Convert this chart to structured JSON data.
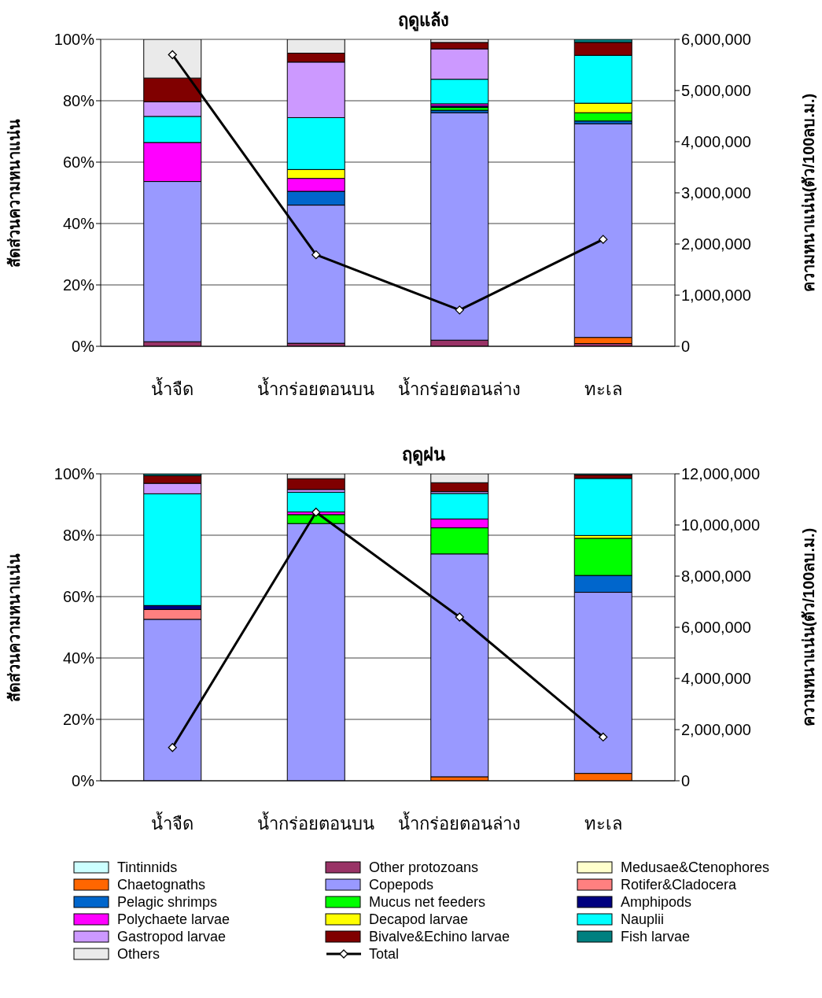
{
  "chart_data": [
    {
      "type": "bar",
      "stacked": true,
      "title": "ฤดูแล้ง",
      "ylabel": "สัดส่วนความหนาแน่น",
      "y2label": "ความหนาแน่น(ตัว/100ลบ.ม.)",
      "categories": [
        "น้ำจืด",
        "น้ำกร่อยตอนบน",
        "น้ำกร่อยตอนล่าง",
        "ทะเล"
      ],
      "ylim": [
        0,
        100
      ],
      "yticks": [
        {
          "value": 0,
          "label": "0%"
        },
        {
          "value": 20,
          "label": "20%"
        },
        {
          "value": 40,
          "label": "40%"
        },
        {
          "value": 60,
          "label": "60%"
        },
        {
          "value": 80,
          "label": "80%"
        },
        {
          "value": 100,
          "label": "100%"
        }
      ],
      "y2lim": [
        0,
        6000000
      ],
      "y2ticks": [
        {
          "value": 0,
          "label": "0"
        },
        {
          "value": 1000000,
          "label": "1,000,000"
        },
        {
          "value": 2000000,
          "label": "2,000,000"
        },
        {
          "value": 3000000,
          "label": "3,000,000"
        },
        {
          "value": 4000000,
          "label": "4,000,000"
        },
        {
          "value": 5000000,
          "label": "5,000,000"
        },
        {
          "value": 6000000,
          "label": "6,000,000"
        }
      ],
      "grid": "y",
      "marker": "diamond",
      "series": [
        {
          "color": "#ccffff",
          "values": [
            0,
            0,
            0,
            0
          ]
        },
        {
          "color": "#993366",
          "values": [
            1.5,
            1.0,
            2.0,
            0.9
          ]
        },
        {
          "color": "#ffffcc",
          "values": [
            0,
            0,
            0,
            0
          ]
        },
        {
          "color": "#ff6600",
          "values": [
            0,
            0,
            0,
            2.0
          ]
        },
        {
          "color": "#9999ff",
          "values": [
            52.2,
            45.0,
            74.1,
            69.6
          ]
        },
        {
          "color": "#ff8080",
          "values": [
            0,
            0,
            0,
            0
          ]
        },
        {
          "color": "#0066cc",
          "values": [
            0,
            4.5,
            0.8,
            0.9
          ]
        },
        {
          "color": "#00ff00",
          "values": [
            0,
            0,
            0.9,
            2.7
          ]
        },
        {
          "color": "#000080",
          "values": [
            0,
            0,
            0.5,
            0
          ]
        },
        {
          "color": "#ff00ff",
          "values": [
            12.7,
            4.2,
            0.7,
            0
          ]
        },
        {
          "color": "#ffff00",
          "values": [
            0,
            2.9,
            0,
            3.1
          ]
        },
        {
          "color": "#00ffff",
          "values": [
            8.5,
            16.9,
            8.0,
            15.6
          ]
        },
        {
          "color": "#cc99ff",
          "values": [
            4.8,
            18.1,
            9.9,
            0
          ]
        },
        {
          "color": "#800000",
          "values": [
            7.7,
            2.9,
            2.1,
            4.2
          ]
        },
        {
          "color": "#008080",
          "values": [
            0,
            0,
            0,
            1.0
          ]
        },
        {
          "color": "#eaeaea",
          "values": [
            12.6,
            4.5,
            1.0,
            0
          ]
        },
        {
          "type": "line",
          "axis": "y2",
          "color": "#000000",
          "values": [
            5700000,
            1790000,
            710000,
            2090000
          ]
        }
      ]
    },
    {
      "type": "bar",
      "stacked": true,
      "title": "ฤดูฝน",
      "ylabel": "สัดส่วนความหนาแน่น",
      "y2label": "ความหนาแน่น(ตัว/100ลบ.ม.)",
      "categories": [
        "น้ำจืด",
        "น้ำกร่อยตอนบน",
        "น้ำกร่อยตอนล่าง",
        "ทะเล"
      ],
      "ylim": [
        0,
        100
      ],
      "yticks": [
        {
          "value": 0,
          "label": "0%"
        },
        {
          "value": 20,
          "label": "20%"
        },
        {
          "value": 40,
          "label": "40%"
        },
        {
          "value": 60,
          "label": "60%"
        },
        {
          "value": 80,
          "label": "80%"
        },
        {
          "value": 100,
          "label": "100%"
        }
      ],
      "y2lim": [
        0,
        12000000
      ],
      "y2ticks": [
        {
          "value": 0,
          "label": "0"
        },
        {
          "value": 2000000,
          "label": "2,000,000"
        },
        {
          "value": 4000000,
          "label": "4,000,000"
        },
        {
          "value": 6000000,
          "label": "6,000,000"
        },
        {
          "value": 8000000,
          "label": "8,000,000"
        },
        {
          "value": 10000000,
          "label": "10,000,000"
        },
        {
          "value": 12000000,
          "label": "12,000,000"
        }
      ],
      "grid": "y",
      "legend": "bottom",
      "marker": "diamond",
      "series": [
        {
          "name": "Tintinnids",
          "color": "#ccffff",
          "values": [
            0,
            0,
            0,
            0
          ]
        },
        {
          "name": "Other protozoans",
          "color": "#993366",
          "values": [
            0,
            0,
            0,
            0
          ]
        },
        {
          "name": "Medusae&Ctenophores",
          "color": "#ffffcc",
          "values": [
            0,
            0,
            0,
            0
          ]
        },
        {
          "name": "Chaetognaths",
          "color": "#ff6600",
          "values": [
            0,
            0,
            1.3,
            2.4
          ]
        },
        {
          "name": "Copepods",
          "color": "#9999ff",
          "values": [
            52.6,
            83.8,
            72.6,
            59.0
          ]
        },
        {
          "name": "Rotifer&Cladocera",
          "color": "#ff8080",
          "values": [
            3.2,
            0,
            0,
            0
          ]
        },
        {
          "name": "Pelagic shrimps",
          "color": "#0066cc",
          "values": [
            0,
            0,
            0,
            5.5
          ]
        },
        {
          "name": "Mucus net feeders",
          "color": "#00ff00",
          "values": [
            0,
            2.9,
            8.5,
            12.1
          ]
        },
        {
          "name": "Amphipods",
          "color": "#000080",
          "values": [
            1.3,
            0,
            0,
            0
          ]
        },
        {
          "name": "Polychaete larvae",
          "color": "#ff00ff",
          "values": [
            0,
            0.9,
            2.9,
            0
          ]
        },
        {
          "name": "Decapod larvae",
          "color": "#ffff00",
          "values": [
            0,
            0,
            0,
            0.9
          ]
        },
        {
          "name": "Nauplii",
          "color": "#00ffff",
          "values": [
            36.4,
            6.4,
            8.3,
            18.6
          ]
        },
        {
          "name": "Gastropod larvae",
          "color": "#cc99ff",
          "values": [
            3.4,
            0.9,
            0.6,
            0
          ]
        },
        {
          "name": "Bivalve&Echino larvae",
          "color": "#800000",
          "values": [
            2.5,
            3.5,
            2.9,
            1.1
          ]
        },
        {
          "name": "Fish larvae",
          "color": "#008080",
          "values": [
            0.6,
            0,
            0,
            0.4
          ]
        },
        {
          "name": "Others",
          "color": "#eaeaea",
          "values": [
            0,
            1.6,
            2.9,
            0
          ]
        },
        {
          "name": "Total",
          "type": "line",
          "axis": "y2",
          "color": "#000000",
          "values": [
            1300000,
            10500000,
            6400000,
            1710000
          ]
        }
      ]
    }
  ]
}
